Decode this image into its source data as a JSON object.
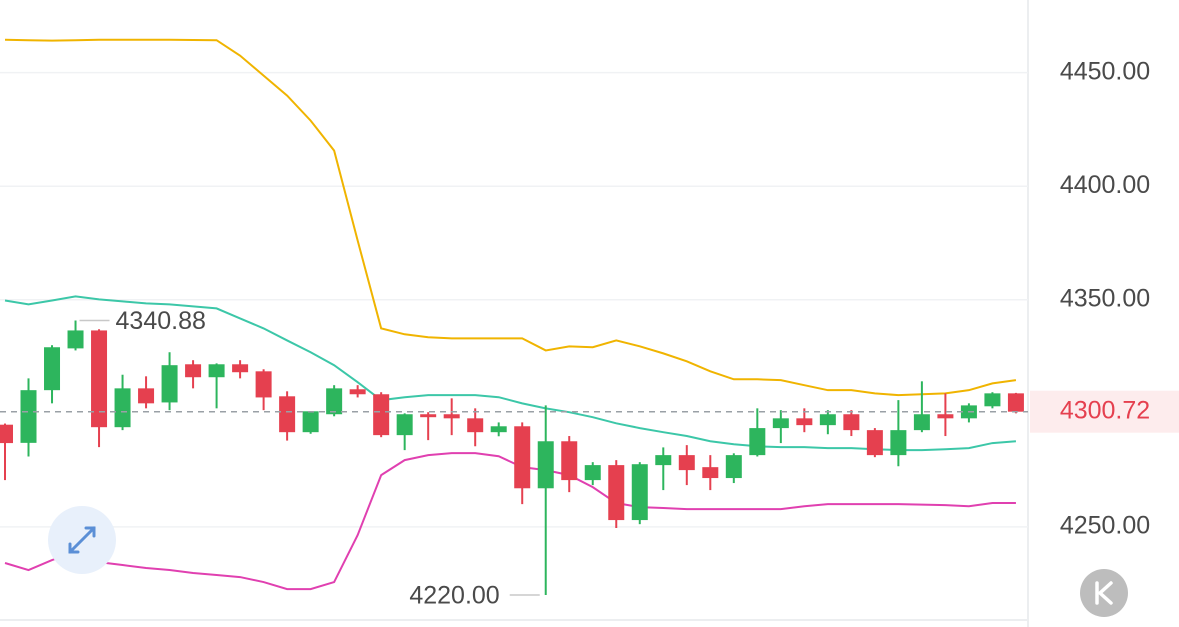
{
  "chart_data": {
    "type": "candlestick",
    "open": [
      4295,
      4287,
      4310.2,
      4328.6,
      4336.5,
      4293.9,
      4311,
      4304.8,
      4321.6,
      4315.9,
      4321.6,
      4318.5,
      4307.5,
      4291.7,
      4299.6,
      4310.6,
      4308.4,
      4290.4,
      4299.6,
      4299.6,
      4297.8,
      4291.7,
      4294.3,
      4267,
      4287.7,
      4270.6,
      4277.2,
      4253,
      4277.2,
      4281.6,
      4276.3,
      4271.5,
      4281.6,
      4293.5,
      4297.8,
      4294.8,
      4299.6,
      4292.6,
      4281.6,
      4292.6,
      4299.6,
      4297.8,
      4303.1,
      4308.8
    ],
    "high": [
      4295.5,
      4315.4,
      4330,
      4340.88,
      4337,
      4317,
      4316.3,
      4326.9,
      4323.4,
      4322,
      4323.4,
      4319.4,
      4309.7,
      4301,
      4312.4,
      4312.4,
      4309.3,
      4300,
      4300.5,
      4306.6,
      4302.2,
      4296,
      4296,
      4303.5,
      4290,
      4278.5,
      4279.4,
      4278.5,
      4285,
      4286,
      4281.6,
      4282.4,
      4302.2,
      4301.4,
      4302.2,
      4301.4,
      4301.4,
      4293.5,
      4305.8,
      4314.1,
      4308.8,
      4304.4,
      4309.3,
      4309
    ],
    "low": [
      4270.6,
      4281,
      4304.4,
      4327.7,
      4285.1,
      4292.6,
      4302.2,
      4301.4,
      4311,
      4302.2,
      4315.4,
      4301.4,
      4288,
      4291,
      4298.7,
      4307,
      4289.5,
      4283.8,
      4288.2,
      4290.4,
      4285.5,
      4289.9,
      4260,
      4220,
      4265.3,
      4268.4,
      4249.5,
      4251.2,
      4266.2,
      4268.4,
      4266.2,
      4269.3,
      4281,
      4286.9,
      4291.7,
      4290.8,
      4290,
      4280.7,
      4276.7,
      4291.7,
      4290,
      4296,
      4302.2,
      4300
    ],
    "close": [
      4286.9,
      4310.2,
      4329.1,
      4336.5,
      4293.9,
      4311,
      4304.4,
      4321.2,
      4315.9,
      4321.6,
      4318.1,
      4307,
      4291.7,
      4300.9,
      4311,
      4308.4,
      4290.4,
      4299.6,
      4298.3,
      4297.8,
      4291.7,
      4294.3,
      4267,
      4287.7,
      4270.6,
      4277.2,
      4253,
      4277.6,
      4281.6,
      4275,
      4271.5,
      4281.6,
      4293.5,
      4297.8,
      4294.8,
      4299.6,
      4292.6,
      4281.6,
      4292.6,
      4299.6,
      4297.8,
      4303.5,
      4308.8,
      4300.72
    ],
    "up_color": "#2db55d",
    "down_color": "#e5404f",
    "bands": [
      {
        "color": "#f0b400",
        "values": [
          4464.5,
          4464.3,
          4464.1,
          4464.3,
          4464.5,
          4464.5,
          4464.5,
          4464.5,
          4464.4,
          4464.3,
          4457.5,
          4448.7,
          4439.9,
          4428.9,
          4415.7,
          4376.1,
          4337.4,
          4334.8,
          4333.5,
          4333,
          4333,
          4333,
          4333,
          4327.7,
          4329.5,
          4329.1,
          4332.1,
          4329.5,
          4326.4,
          4322.9,
          4318.5,
          4315,
          4315,
          4314.6,
          4312.4,
          4310.2,
          4310.2,
          4308.8,
          4308,
          4308.4,
          4308.8,
          4310.2,
          4313.2,
          4314.6
        ]
      },
      {
        "color": "#3cc7a8",
        "values": [
          4349.7,
          4348,
          4349.7,
          4351.5,
          4350.2,
          4349.3,
          4348.4,
          4348,
          4347.1,
          4346.2,
          4341.8,
          4337.4,
          4332.1,
          4326.9,
          4321.2,
          4313.7,
          4305.8,
          4307.1,
          4308,
          4308,
          4308,
          4307.1,
          4304.4,
          4302.2,
          4300.5,
          4298.3,
          4295.6,
          4293.5,
          4291.7,
          4290,
          4287.7,
          4286.4,
          4285.5,
          4285.1,
          4285.1,
          4284.7,
          4284.7,
          4284.2,
          4283.8,
          4283.8,
          4284.2,
          4284.7,
          4286.9,
          4287.7
        ]
      },
      {
        "color": "#e040b0",
        "values": [
          4234.1,
          4231,
          4235.4,
          4238.9,
          4234.5,
          4233.2,
          4231.9,
          4231,
          4229.7,
          4228.8,
          4227.9,
          4225.7,
          4222.6,
          4222.6,
          4225.7,
          4246.4,
          4272.8,
          4279.4,
          4281.6,
          4282.5,
          4282.5,
          4281.1,
          4276.3,
          4275,
          4272.8,
          4267.5,
          4260.5,
          4258.7,
          4258.3,
          4257.8,
          4257.8,
          4257.8,
          4257.8,
          4257.8,
          4259.1,
          4260,
          4260,
          4260,
          4260,
          4259.8,
          4259.6,
          4259.1,
          4260.5,
          4260.5
        ]
      }
    ],
    "ylim": [
      4209,
      4482
    ],
    "yticks": [
      {
        "value": 4250,
        "label": "4250.00"
      },
      {
        "value": 4350,
        "label": "4350.00"
      },
      {
        "value": 4400,
        "label": "4400.00"
      },
      {
        "value": 4450,
        "label": "4450.00"
      }
    ],
    "grid": true,
    "max_label": {
      "value": 4340.88,
      "label": "4340.88"
    },
    "min_label": {
      "value": 4220,
      "label": "4220.00"
    },
    "last_price": {
      "value": 4300.72,
      "label": "4300.72"
    }
  }
}
